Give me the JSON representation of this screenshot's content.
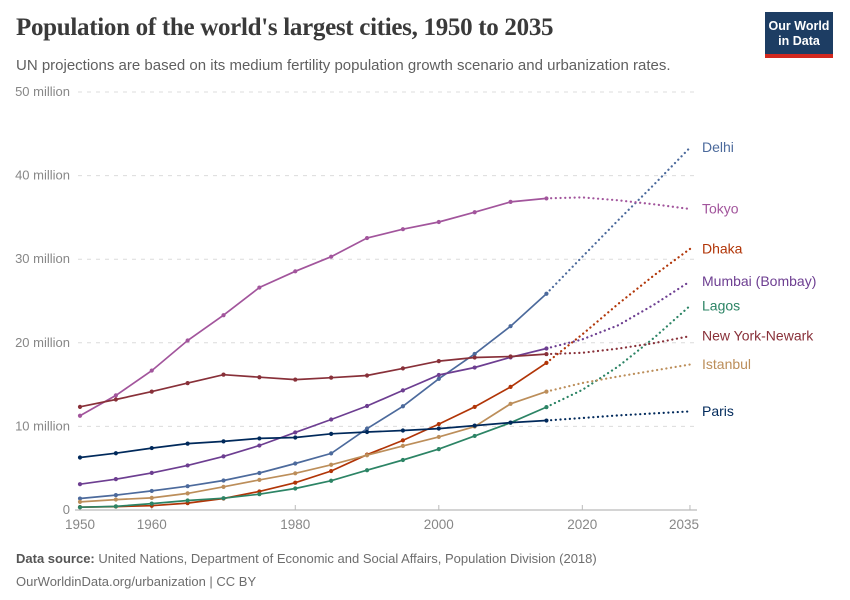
{
  "header": {
    "title": "Population of the world's largest cities, 1950 to 2035",
    "subtitle": "UN projections are based on its medium fertility population growth scenario and urbanization rates.",
    "logo": {
      "line1": "Our World",
      "line2": "in Data",
      "bg_color": "#1d3d63",
      "accent_color": "#d2281e"
    }
  },
  "chart_data": {
    "type": "line",
    "title": "Population of the world's largest cities, 1950 to 2035",
    "unit": "million people",
    "x": [
      1950,
      1955,
      1960,
      1965,
      1970,
      1975,
      1980,
      1985,
      1990,
      1995,
      2000,
      2005,
      2010,
      2015,
      2020,
      2025,
      2030,
      2035
    ],
    "projection_start_year": 2015,
    "projection_style": "dotted",
    "xlim": [
      1950,
      2035
    ],
    "ylim": [
      0,
      50
    ],
    "grid": "horizontal-dashed",
    "legend_position": "right-end-labels",
    "y_ticks": [
      {
        "value": 0,
        "label": "0"
      },
      {
        "value": 10,
        "label": "10 million"
      },
      {
        "value": 20,
        "label": "20 million"
      },
      {
        "value": 30,
        "label": "30 million"
      },
      {
        "value": 40,
        "label": "40 million"
      },
      {
        "value": 50,
        "label": "50 million"
      }
    ],
    "x_ticks": [
      {
        "year": 1950,
        "label": "1950"
      },
      {
        "year": 1960,
        "label": "1960"
      },
      {
        "year": 1980,
        "label": "1980"
      },
      {
        "year": 2000,
        "label": "2000"
      },
      {
        "year": 2020,
        "label": "2020"
      },
      {
        "year": 2035,
        "label": "2035"
      }
    ],
    "series": [
      {
        "name": "Delhi",
        "color": "#4C6A9C",
        "values": [
          1.37,
          1.78,
          2.28,
          2.85,
          3.53,
          4.43,
          5.56,
          6.77,
          9.73,
          12.41,
          15.69,
          18.67,
          21.99,
          25.87,
          30.29,
          34.67,
          38.94,
          43.35
        ]
      },
      {
        "name": "Tokyo",
        "color": "#A2559C",
        "values": [
          11.27,
          13.71,
          16.68,
          20.28,
          23.3,
          26.61,
          28.55,
          30.3,
          32.53,
          33.59,
          34.45,
          35.62,
          36.86,
          37.27,
          37.39,
          37.04,
          36.57,
          36.01
        ]
      },
      {
        "name": "Dhaka",
        "color": "#B13507",
        "values": [
          0.34,
          0.41,
          0.51,
          0.82,
          1.37,
          2.22,
          3.27,
          4.66,
          6.62,
          8.33,
          10.28,
          12.33,
          14.73,
          17.6,
          21.01,
          24.65,
          28.08,
          31.23
        ]
      },
      {
        "name": "Mumbai (Bombay)",
        "color": "#6D3E91",
        "values": [
          3.09,
          3.69,
          4.44,
          5.33,
          6.41,
          7.71,
          9.28,
          10.83,
          12.44,
          14.31,
          16.15,
          17.04,
          18.26,
          19.32,
          20.41,
          22.09,
          24.57,
          27.34
        ]
      },
      {
        "name": "Lagos",
        "color": "#2C8465",
        "values": [
          0.33,
          0.43,
          0.76,
          1.14,
          1.41,
          1.89,
          2.57,
          3.5,
          4.76,
          5.98,
          7.28,
          8.86,
          10.44,
          12.31,
          14.37,
          17.16,
          20.6,
          24.42
        ]
      },
      {
        "name": "New York-Newark",
        "color": "#883039",
        "values": [
          12.34,
          13.22,
          14.16,
          15.18,
          16.19,
          15.88,
          15.6,
          15.83,
          16.09,
          16.94,
          17.81,
          18.24,
          18.36,
          18.65,
          18.8,
          19.31,
          19.96,
          20.8
        ]
      },
      {
        "name": "Istanbul",
        "color": "#BC8E5A",
        "values": [
          0.97,
          1.25,
          1.45,
          1.99,
          2.77,
          3.6,
          4.39,
          5.41,
          6.55,
          7.67,
          8.74,
          9.98,
          12.7,
          14.16,
          15.19,
          15.97,
          16.69,
          17.41
        ]
      },
      {
        "name": "Paris",
        "color": "#00295B",
        "values": [
          6.28,
          6.79,
          7.41,
          7.94,
          8.21,
          8.56,
          8.67,
          9.11,
          9.33,
          9.51,
          9.74,
          10.09,
          10.46,
          10.7,
          11.01,
          11.31,
          11.56,
          11.79
        ]
      }
    ]
  },
  "footer": {
    "source_label": "Data source:",
    "source_text": " United Nations, Department of Economic and Social Affairs, Population Division (2018)",
    "link_text": "OurWorldinData.org/urbanization",
    "license_text": " | CC BY"
  }
}
